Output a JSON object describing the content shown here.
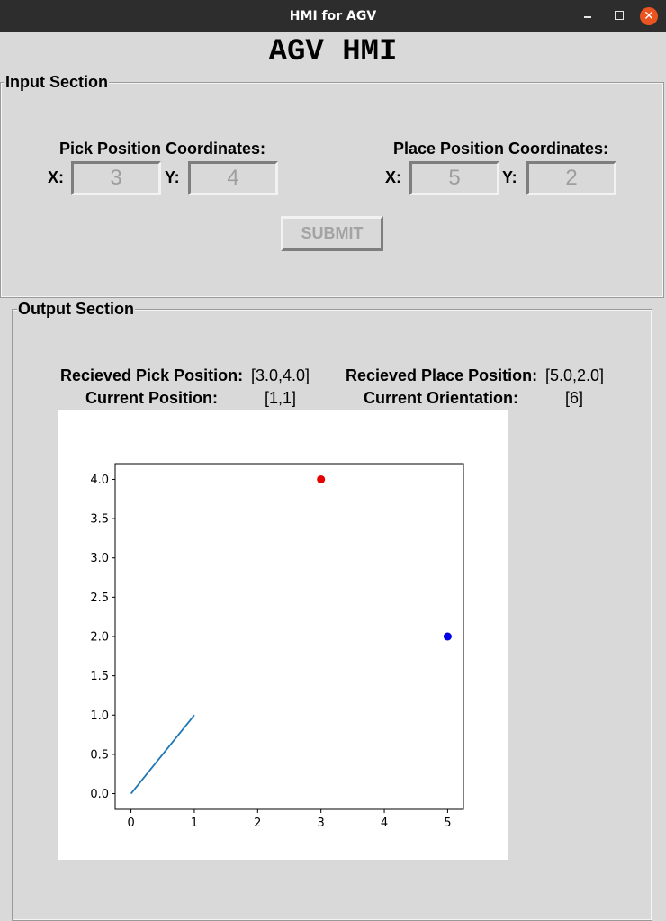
{
  "window": {
    "title": "HMI for AGV",
    "close_glyph": "✕"
  },
  "app": {
    "title": "AGV HMI"
  },
  "input_section": {
    "label": "Input Section",
    "pick": {
      "heading": "Pick Position Coordinates:",
      "x_label": "X:",
      "y_label": "Y:",
      "x_value": "3",
      "y_value": "4"
    },
    "place": {
      "heading": "Place Position Coordinates:",
      "x_label": "X:",
      "y_label": "Y:",
      "x_value": "5",
      "y_value": "2"
    },
    "submit_label": "SUBMIT"
  },
  "output_section": {
    "label": "Output Section",
    "received_pick_label": "Recieved Pick Position:",
    "received_pick_value": "[3.0,4.0]",
    "received_place_label": "Recieved Place Position:",
    "received_place_value": "[5.0,2.0]",
    "current_position_label": "Current Position:",
    "current_position_value": "[1,1]",
    "current_orientation_label": "Current Orientation:",
    "current_orientation_value": "[6]"
  },
  "chart_data": {
    "type": "scatter",
    "xlim": [
      -0.25,
      5.25
    ],
    "ylim": [
      -0.2,
      4.2
    ],
    "x_ticks": [
      "0",
      "1",
      "2",
      "3",
      "4",
      "5"
    ],
    "y_ticks": [
      "0.0",
      "0.5",
      "1.0",
      "1.5",
      "2.0",
      "2.5",
      "3.0",
      "3.5",
      "4.0"
    ],
    "grid": false,
    "line": {
      "x": [
        0,
        1
      ],
      "y": [
        0,
        1
      ],
      "color": "#1f77b4"
    },
    "points": [
      {
        "x": 3,
        "y": 4,
        "color": "#e60000"
      },
      {
        "x": 5,
        "y": 2,
        "color": "#0000e6"
      }
    ]
  }
}
